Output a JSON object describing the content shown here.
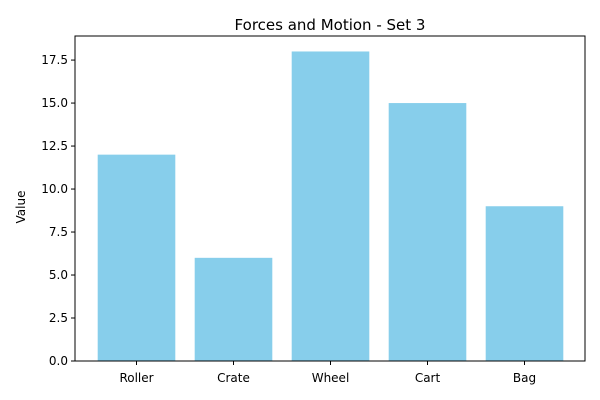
{
  "chart_data": {
    "type": "bar",
    "title": "Forces and Motion - Set 3",
    "xlabel": "",
    "ylabel": "Value",
    "categories": [
      "Roller",
      "Crate",
      "Wheel",
      "Cart",
      "Bag"
    ],
    "values": [
      12,
      6,
      18,
      15,
      9
    ],
    "ylim": [
      0,
      18.9
    ],
    "yticks": [
      0,
      2.5,
      5,
      7.5,
      10,
      12.5,
      15,
      17.5
    ],
    "ytick_labels": [
      "0.0",
      "2.5",
      "5.0",
      "7.5",
      "10.0",
      "12.5",
      "15.0",
      "17.5"
    ],
    "bar_color": "#87ceeb",
    "grid": false,
    "legend": "none"
  }
}
